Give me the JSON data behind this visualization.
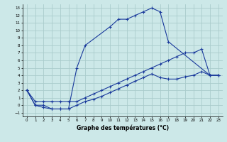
{
  "xlabel": "Graphe des températures (°C)",
  "background_color": "#cce8e8",
  "grid_color": "#aacccc",
  "line_color": "#1a3a9c",
  "xlim": [
    -0.5,
    23.5
  ],
  "ylim": [
    -1.5,
    13.5
  ],
  "xticks": [
    0,
    1,
    2,
    3,
    4,
    5,
    6,
    7,
    8,
    9,
    10,
    11,
    12,
    13,
    14,
    15,
    16,
    17,
    18,
    19,
    20,
    21,
    22,
    23
  ],
  "yticks": [
    -1,
    0,
    1,
    2,
    3,
    4,
    5,
    6,
    7,
    8,
    9,
    10,
    11,
    12,
    13
  ],
  "line1_x": [
    0,
    1,
    2,
    3,
    4,
    5,
    6,
    7,
    10,
    11,
    12,
    13,
    14,
    15,
    16,
    17,
    22,
    23
  ],
  "line1_y": [
    2,
    0,
    -0.3,
    -0.5,
    -0.5,
    -0.5,
    5,
    8,
    10.5,
    11.5,
    11.5,
    12,
    12.5,
    13,
    12.5,
    8.5,
    4,
    4
  ],
  "line2_x": [
    0,
    1,
    2,
    3,
    4,
    5,
    6,
    7,
    8,
    9,
    10,
    11,
    12,
    13,
    14,
    15,
    16,
    17,
    18,
    19,
    20,
    21,
    22,
    23
  ],
  "line2_y": [
    2,
    0.5,
    0.5,
    0.5,
    0.5,
    0.5,
    0.5,
    1.0,
    1.5,
    2.0,
    2.5,
    3.0,
    3.5,
    4.0,
    4.5,
    5.0,
    5.5,
    6.0,
    6.5,
    7.0,
    7.0,
    7.5,
    4,
    4
  ],
  "line3_x": [
    0,
    1,
    2,
    3,
    4,
    5,
    6,
    7,
    8,
    9,
    10,
    11,
    12,
    13,
    14,
    15,
    16,
    17,
    18,
    19,
    20,
    21,
    22,
    23
  ],
  "line3_y": [
    2,
    0,
    0,
    -0.5,
    -0.5,
    -0.5,
    0,
    0.5,
    0.8,
    1.2,
    1.7,
    2.2,
    2.7,
    3.2,
    3.7,
    4.2,
    3.7,
    3.5,
    3.5,
    3.8,
    4.0,
    4.5,
    4,
    4
  ]
}
